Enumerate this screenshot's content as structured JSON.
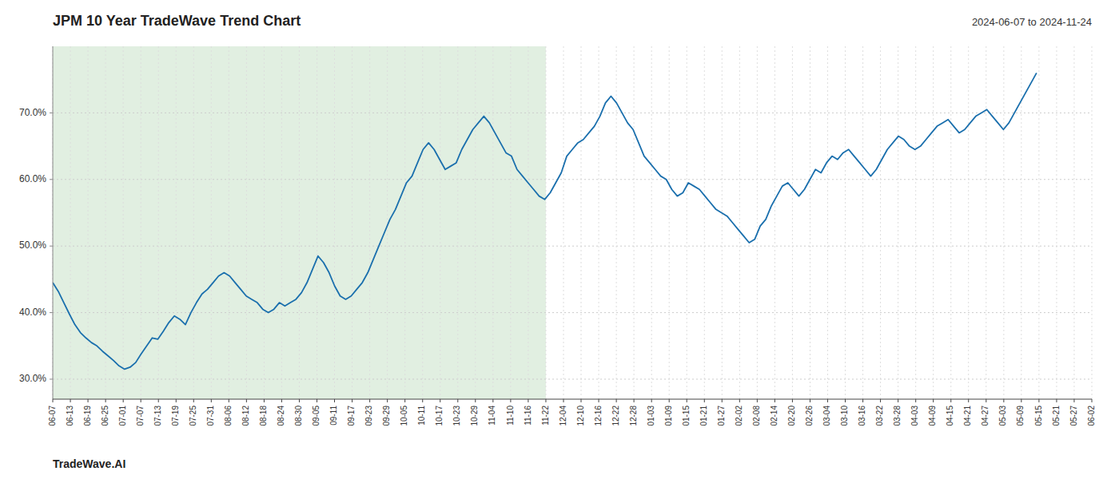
{
  "chart_data": {
    "type": "line",
    "title": "JPM 10 Year TradeWave Trend Chart",
    "subtitle": "2024-06-07 to 2024-11-24",
    "annotations": [
      "TradeWave.AI"
    ],
    "color": "#1a6fad",
    "grid": true,
    "span": {
      "start": 0,
      "end": 89.22,
      "color": "#d4e8d4"
    },
    "xlim": [
      0,
      188
    ],
    "xticks": [
      {
        "value": 0,
        "label": "06-07"
      },
      {
        "value": 3.19,
        "label": "06-13"
      },
      {
        "value": 6.37,
        "label": "06-19"
      },
      {
        "value": 9.56,
        "label": "06-25"
      },
      {
        "value": 12.75,
        "label": "07-01"
      },
      {
        "value": 15.93,
        "label": "07-07"
      },
      {
        "value": 19.12,
        "label": "07-13"
      },
      {
        "value": 22.31,
        "label": "07-19"
      },
      {
        "value": 25.49,
        "label": "07-25"
      },
      {
        "value": 28.68,
        "label": "07-31"
      },
      {
        "value": 31.86,
        "label": "08-06"
      },
      {
        "value": 35.05,
        "label": "08-12"
      },
      {
        "value": 38.24,
        "label": "08-18"
      },
      {
        "value": 41.42,
        "label": "08-24"
      },
      {
        "value": 44.61,
        "label": "08-30"
      },
      {
        "value": 47.8,
        "label": "09-05"
      },
      {
        "value": 50.98,
        "label": "09-11"
      },
      {
        "value": 54.17,
        "label": "09-17"
      },
      {
        "value": 57.36,
        "label": "09-23"
      },
      {
        "value": 60.54,
        "label": "09-29"
      },
      {
        "value": 63.73,
        "label": "10-05"
      },
      {
        "value": 66.92,
        "label": "10-11"
      },
      {
        "value": 70.1,
        "label": "10-17"
      },
      {
        "value": 73.29,
        "label": "10-23"
      },
      {
        "value": 76.47,
        "label": "10-29"
      },
      {
        "value": 79.66,
        "label": "11-04"
      },
      {
        "value": 82.85,
        "label": "11-10"
      },
      {
        "value": 86.03,
        "label": "11-16"
      },
      {
        "value": 89.22,
        "label": "11-22"
      },
      {
        "value": 92.41,
        "label": "12-04"
      },
      {
        "value": 95.59,
        "label": "12-10"
      },
      {
        "value": 98.78,
        "label": "12-16"
      },
      {
        "value": 101.97,
        "label": "12-22"
      },
      {
        "value": 105.15,
        "label": "12-28"
      },
      {
        "value": 108.34,
        "label": "01-03"
      },
      {
        "value": 111.53,
        "label": "01-09"
      },
      {
        "value": 114.71,
        "label": "01-15"
      },
      {
        "value": 117.9,
        "label": "01-21"
      },
      {
        "value": 121.08,
        "label": "01-27"
      },
      {
        "value": 124.27,
        "label": "02-02"
      },
      {
        "value": 127.46,
        "label": "02-08"
      },
      {
        "value": 130.64,
        "label": "02-14"
      },
      {
        "value": 133.83,
        "label": "02-20"
      },
      {
        "value": 137.02,
        "label": "02-26"
      },
      {
        "value": 140.2,
        "label": "03-04"
      },
      {
        "value": 143.39,
        "label": "03-10"
      },
      {
        "value": 146.58,
        "label": "03-16"
      },
      {
        "value": 149.76,
        "label": "03-22"
      },
      {
        "value": 152.95,
        "label": "03-28"
      },
      {
        "value": 156.14,
        "label": "04-03"
      },
      {
        "value": 159.32,
        "label": "04-09"
      },
      {
        "value": 162.51,
        "label": "04-15"
      },
      {
        "value": 165.69,
        "label": "04-21"
      },
      {
        "value": 168.88,
        "label": "04-27"
      },
      {
        "value": 172.07,
        "label": "05-03"
      },
      {
        "value": 175.25,
        "label": "05-09"
      },
      {
        "value": 178.44,
        "label": "05-15"
      },
      {
        "value": 181.63,
        "label": "05-21"
      },
      {
        "value": 184.81,
        "label": "05-27"
      },
      {
        "value": 188,
        "label": "06-02"
      }
    ],
    "ylim": [
      27.0,
      80.0
    ],
    "yticks": [
      {
        "value": 30.0,
        "label": "30.0%"
      },
      {
        "value": 40.0,
        "label": "40.0%"
      },
      {
        "value": 50.0,
        "label": "50.0%"
      },
      {
        "value": 60.0,
        "label": "60.0%"
      },
      {
        "value": 70.0,
        "label": "70.0%"
      }
    ],
    "values": [
      44.5,
      43.2,
      41.5,
      39.8,
      38.2,
      37.0,
      36.2,
      35.5,
      35.0,
      34.2,
      33.5,
      32.8,
      32.0,
      31.5,
      31.8,
      32.5,
      33.8,
      35.0,
      36.2,
      36.0,
      37.2,
      38.5,
      39.5,
      39.0,
      38.2,
      40.0,
      41.5,
      42.8,
      43.5,
      44.5,
      45.5,
      46.0,
      45.5,
      44.5,
      43.5,
      42.5,
      42.0,
      41.5,
      40.5,
      40.0,
      40.5,
      41.5,
      41.0,
      41.5,
      42.0,
      43.0,
      44.5,
      46.5,
      48.5,
      47.5,
      46.0,
      44.0,
      42.5,
      42.0,
      42.5,
      43.5,
      44.5,
      46.0,
      48.0,
      50.0,
      52.0,
      54.0,
      55.5,
      57.5,
      59.5,
      60.5,
      62.5,
      64.5,
      65.5,
      64.5,
      63.0,
      61.5,
      62.0,
      62.5,
      64.5,
      66.0,
      67.5,
      68.5,
      69.5,
      68.5,
      67.0,
      65.5,
      64.0,
      63.5,
      61.5,
      60.5,
      59.5,
      58.5,
      57.5,
      57.0,
      58.0,
      59.5,
      61.0,
      63.5,
      64.5,
      65.5,
      66.0,
      67.0,
      68.0,
      69.5,
      71.5,
      72.5,
      71.5,
      70.0,
      68.5,
      67.5,
      65.5,
      63.5,
      62.5,
      61.5,
      60.5,
      60.0,
      58.5,
      57.5,
      58.0,
      59.5,
      59.0,
      58.5,
      57.5,
      56.5,
      55.5,
      55.0,
      54.5,
      53.5,
      52.5,
      51.5,
      50.5,
      51.0,
      53.0,
      54.0,
      56.0,
      57.5,
      59.0,
      59.5,
      58.5,
      57.5,
      58.5,
      60.0,
      61.5,
      61.0,
      62.5,
      63.5,
      63.0,
      64.0,
      64.5,
      63.5,
      62.5,
      61.5,
      60.5,
      61.5,
      63.0,
      64.5,
      65.5,
      66.5,
      66.0,
      65.0,
      64.5,
      65.0,
      66.0,
      67.0,
      68.0,
      68.5,
      69.0,
      68.0,
      67.0,
      67.5,
      68.5,
      69.5,
      70.0,
      70.5,
      69.5,
      68.5,
      67.5,
      68.5,
      70.0,
      71.5,
      73.0,
      74.5,
      76.0
    ]
  }
}
